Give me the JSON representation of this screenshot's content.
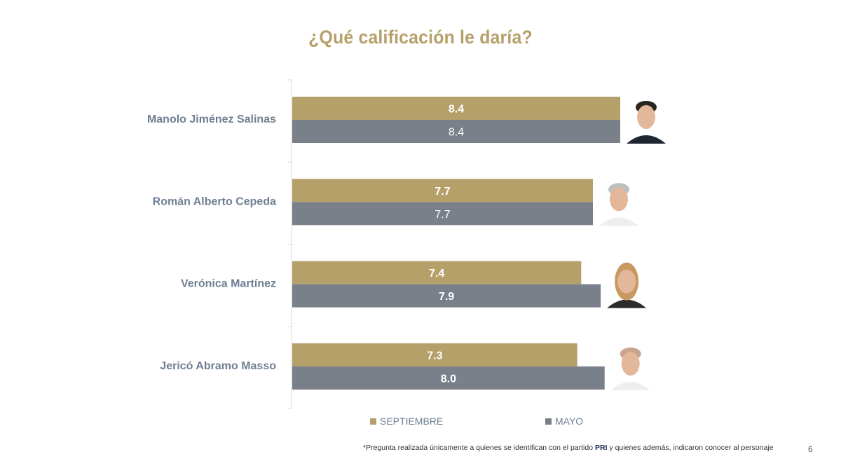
{
  "title": "¿Qué calificación le daría?",
  "chart_data": {
    "type": "bar",
    "orientation": "horizontal",
    "categories": [
      "Manolo Jiménez Salinas",
      "Román Alberto Cepeda",
      "Verónica Martínez",
      "Jericó Abramo Masso"
    ],
    "series": [
      {
        "name": "SEPTIEMBRE",
        "values": [
          8.4,
          7.7,
          7.4,
          7.3
        ],
        "color": "#b5a06a"
      },
      {
        "name": "MAYO",
        "values": [
          8.4,
          7.7,
          7.9,
          8.0
        ],
        "color": "#7a8089"
      }
    ],
    "value_labels": [
      [
        "8.4",
        "8.4"
      ],
      [
        "7.7",
        "7.7"
      ],
      [
        "7.4",
        "7.9"
      ],
      [
        "7.3",
        "8.0"
      ]
    ],
    "bold_labels": [
      [
        true,
        false
      ],
      [
        true,
        false
      ],
      [
        true,
        true
      ],
      [
        true,
        true
      ]
    ],
    "xlim": [
      0,
      8.4
    ],
    "legend": "bottom",
    "grid": false
  },
  "legend": {
    "septiembre": "SEPTIEMBRE",
    "mayo": "MAYO"
  },
  "footnote": {
    "pre": "*Pregunta realizada únicamente a quienes se identifican con el partido",
    "party": "PRI",
    "post": "y quienes además, indicaron conocer al personaje"
  },
  "page_number": "6",
  "colors": {
    "septiembre": "#b5a06a",
    "mayo": "#7a8089",
    "title": "#b5a06a",
    "label": "#6f7f93",
    "axis": "#d9d9d9"
  },
  "portraits": [
    "man-portrait-icon",
    "man-portrait-icon",
    "woman-portrait-icon",
    "man-portrait-icon"
  ]
}
